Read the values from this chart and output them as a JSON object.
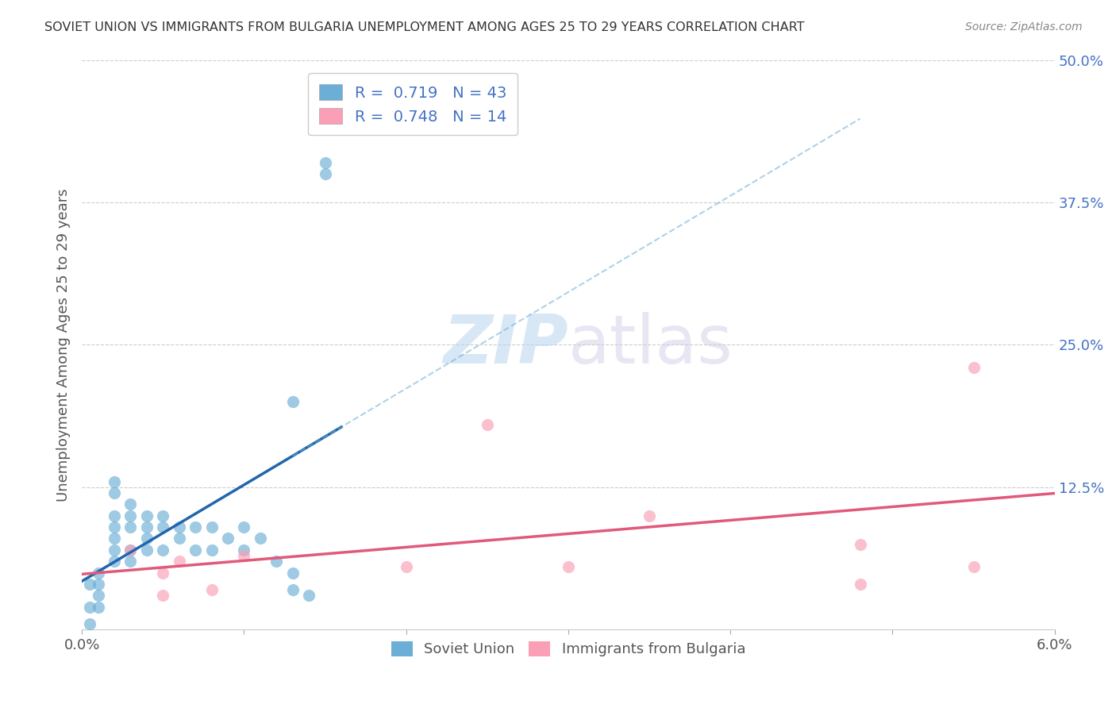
{
  "title": "SOVIET UNION VS IMMIGRANTS FROM BULGARIA UNEMPLOYMENT AMONG AGES 25 TO 29 YEARS CORRELATION CHART",
  "source": "Source: ZipAtlas.com",
  "ylabel": "Unemployment Among Ages 25 to 29 years",
  "xlim": [
    0,
    0.06
  ],
  "ylim": [
    0,
    0.5
  ],
  "ytick_positions": [
    0.0,
    0.125,
    0.25,
    0.375,
    0.5
  ],
  "ytick_labels": [
    "",
    "12.5%",
    "25.0%",
    "37.5%",
    "50.0%"
  ],
  "legend_r1": "R =  0.719   N = 43",
  "legend_r2": "R =  0.748   N = 14",
  "blue_color": "#6baed6",
  "pink_color": "#fa9fb5",
  "blue_line_color": "#2166ac",
  "pink_line_color": "#e05a7a",
  "watermark_zip": "ZIP",
  "watermark_atlas": "atlas",
  "soviet_x": [
    0.0005,
    0.0005,
    0.0005,
    0.001,
    0.001,
    0.001,
    0.001,
    0.002,
    0.002,
    0.002,
    0.002,
    0.002,
    0.003,
    0.003,
    0.003,
    0.003,
    0.003,
    0.004,
    0.004,
    0.004,
    0.004,
    0.005,
    0.005,
    0.005,
    0.006,
    0.006,
    0.007,
    0.007,
    0.008,
    0.008,
    0.009,
    0.01,
    0.01,
    0.011,
    0.012,
    0.013,
    0.013,
    0.014,
    0.015,
    0.015,
    0.002,
    0.002,
    0.013
  ],
  "soviet_y": [
    0.04,
    0.02,
    0.005,
    0.05,
    0.04,
    0.03,
    0.02,
    0.1,
    0.09,
    0.08,
    0.07,
    0.06,
    0.11,
    0.1,
    0.09,
    0.07,
    0.06,
    0.1,
    0.09,
    0.08,
    0.07,
    0.1,
    0.09,
    0.07,
    0.09,
    0.08,
    0.09,
    0.07,
    0.09,
    0.07,
    0.08,
    0.09,
    0.07,
    0.08,
    0.06,
    0.2,
    0.05,
    0.03,
    0.4,
    0.41,
    0.13,
    0.12,
    0.035
  ],
  "bulgaria_x": [
    0.003,
    0.005,
    0.005,
    0.006,
    0.008,
    0.01,
    0.02,
    0.025,
    0.03,
    0.035,
    0.048,
    0.055,
    0.055,
    0.048
  ],
  "bulgaria_y": [
    0.07,
    0.05,
    0.03,
    0.06,
    0.035,
    0.065,
    0.055,
    0.18,
    0.055,
    0.1,
    0.075,
    0.23,
    0.055,
    0.04
  ]
}
